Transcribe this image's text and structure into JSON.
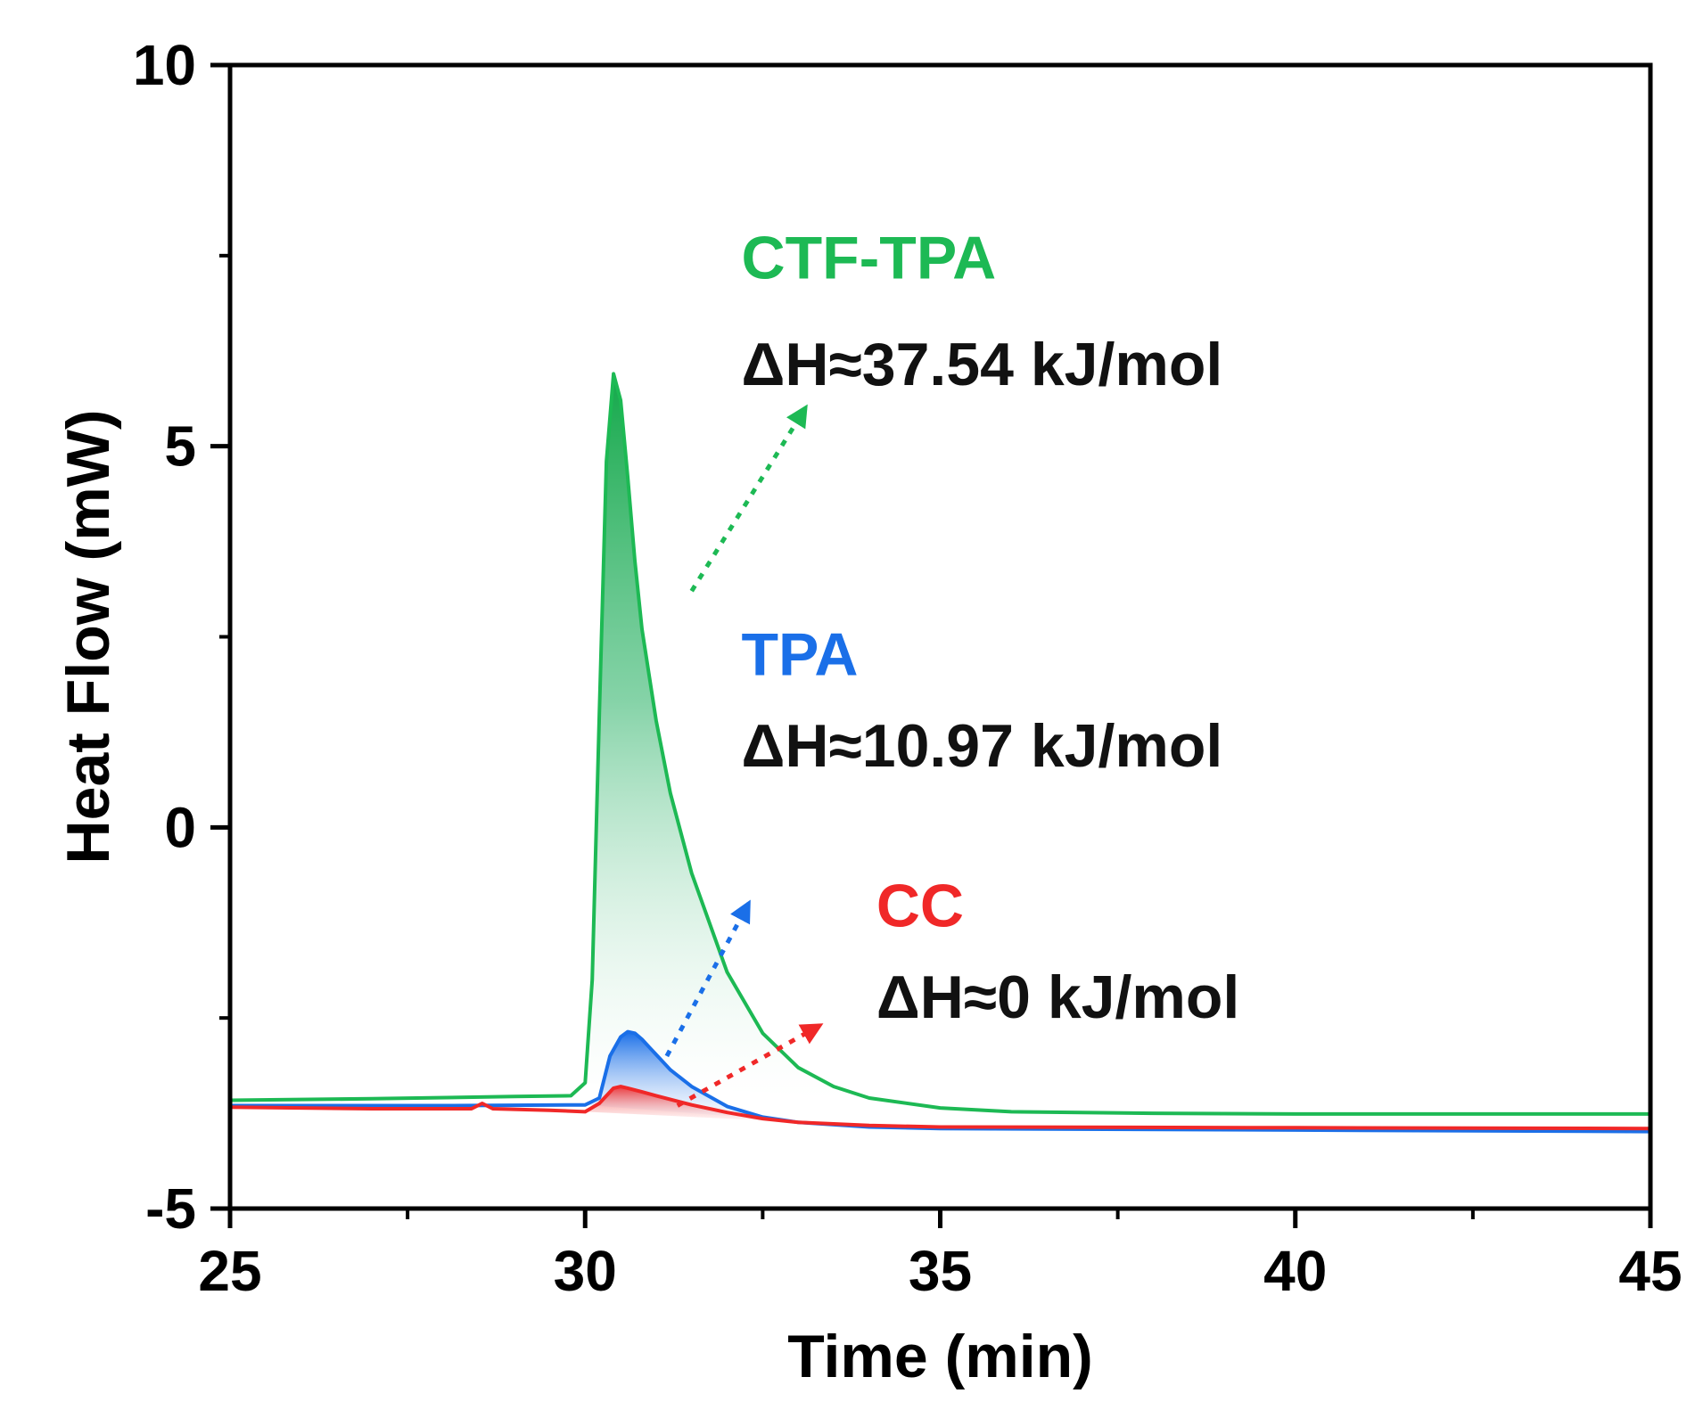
{
  "chart_data": {
    "type": "line",
    "title": "",
    "xlabel": "Time (min)",
    "ylabel": "Heat Flow (mW)",
    "xlim": [
      25,
      45
    ],
    "ylim": [
      -5,
      10
    ],
    "xticks": [
      25,
      30,
      35,
      40,
      45
    ],
    "xtick_labels": [
      "25",
      "30",
      "35",
      "40",
      "45"
    ],
    "yticks": [
      -5,
      0,
      5,
      10
    ],
    "ytick_labels": [
      "-5",
      "0",
      "5",
      "10"
    ],
    "x_minor_ticks": [
      27.5,
      32.5,
      37.5,
      42.5
    ],
    "y_minor_ticks": [
      -2.5,
      2.5,
      7.5
    ],
    "grid": false,
    "series": [
      {
        "name": "CTF-TPA",
        "color": "#1db954",
        "dH_label": "ΔH≈37.54 kJ/mol",
        "x": [
          25,
          27,
          29,
          29.8,
          30.0,
          30.1,
          30.2,
          30.3,
          30.4,
          30.5,
          30.6,
          30.7,
          30.8,
          31.0,
          31.2,
          31.5,
          32.0,
          32.5,
          33.0,
          33.5,
          34.0,
          35.0,
          36.0,
          38.0,
          40.0,
          42.0,
          45.0
        ],
        "y": [
          -3.58,
          -3.56,
          -3.53,
          -3.52,
          -3.35,
          -2.0,
          1.5,
          4.8,
          5.95,
          5.6,
          4.6,
          3.5,
          2.6,
          1.4,
          0.45,
          -0.6,
          -1.9,
          -2.7,
          -3.15,
          -3.4,
          -3.55,
          -3.68,
          -3.73,
          -3.75,
          -3.76,
          -3.76,
          -3.76
        ]
      },
      {
        "name": "TPA",
        "color": "#1a6fe8",
        "dH_label": "ΔH≈10.97 kJ/mol",
        "x": [
          25,
          28,
          30.0,
          30.2,
          30.35,
          30.5,
          30.6,
          30.7,
          30.8,
          30.9,
          31.0,
          31.2,
          31.5,
          32.0,
          32.5,
          33.0,
          34.0,
          35.0,
          40.0,
          45.0
        ],
        "y": [
          -3.65,
          -3.65,
          -3.64,
          -3.55,
          -3.0,
          -2.75,
          -2.68,
          -2.7,
          -2.78,
          -2.88,
          -2.98,
          -3.18,
          -3.4,
          -3.66,
          -3.8,
          -3.87,
          -3.93,
          -3.95,
          -3.97,
          -3.99
        ]
      },
      {
        "name": "CC",
        "color": "#f02828",
        "dH_label": "ΔH≈0 kJ/mol",
        "x": [
          25,
          27,
          28.4,
          28.55,
          28.7,
          29.5,
          30.0,
          30.2,
          30.4,
          30.5,
          30.6,
          30.8,
          31.0,
          31.5,
          32.0,
          32.5,
          33.0,
          34.0,
          35.0,
          40.0,
          45.0
        ],
        "y": [
          -3.67,
          -3.69,
          -3.69,
          -3.62,
          -3.69,
          -3.71,
          -3.73,
          -3.62,
          -3.42,
          -3.4,
          -3.42,
          -3.47,
          -3.52,
          -3.64,
          -3.74,
          -3.82,
          -3.87,
          -3.91,
          -3.93,
          -3.94,
          -3.95
        ]
      }
    ],
    "annotations": [
      {
        "name": "CTF-TPA",
        "label": "CTF-TPA",
        "dH": "ΔH≈37.54 kJ/mol",
        "color": "#1db954",
        "label_x": 32.2,
        "label_y": 7.2,
        "dh_x": 32.2,
        "dh_y": 5.8,
        "arrow_from": [
          31.5,
          3.1
        ],
        "arrow_to": [
          33.1,
          5.5
        ]
      },
      {
        "name": "TPA",
        "label": "TPA",
        "dH": "ΔH≈10.97 kJ/mol",
        "color": "#1a6fe8",
        "label_x": 32.2,
        "label_y": 2.0,
        "dh_x": 32.2,
        "dh_y": 0.8,
        "arrow_from": [
          31.15,
          -3.0
        ],
        "arrow_to": [
          32.3,
          -1.0
        ]
      },
      {
        "name": "CC",
        "label": "CC",
        "dH": "ΔH≈0 kJ/mol",
        "color": "#f02828",
        "label_x": 34.1,
        "label_y": -1.3,
        "dh_x": 34.1,
        "dh_y": -2.5,
        "arrow_from": [
          31.3,
          -3.65
        ],
        "arrow_to": [
          33.3,
          -2.6
        ]
      }
    ]
  }
}
